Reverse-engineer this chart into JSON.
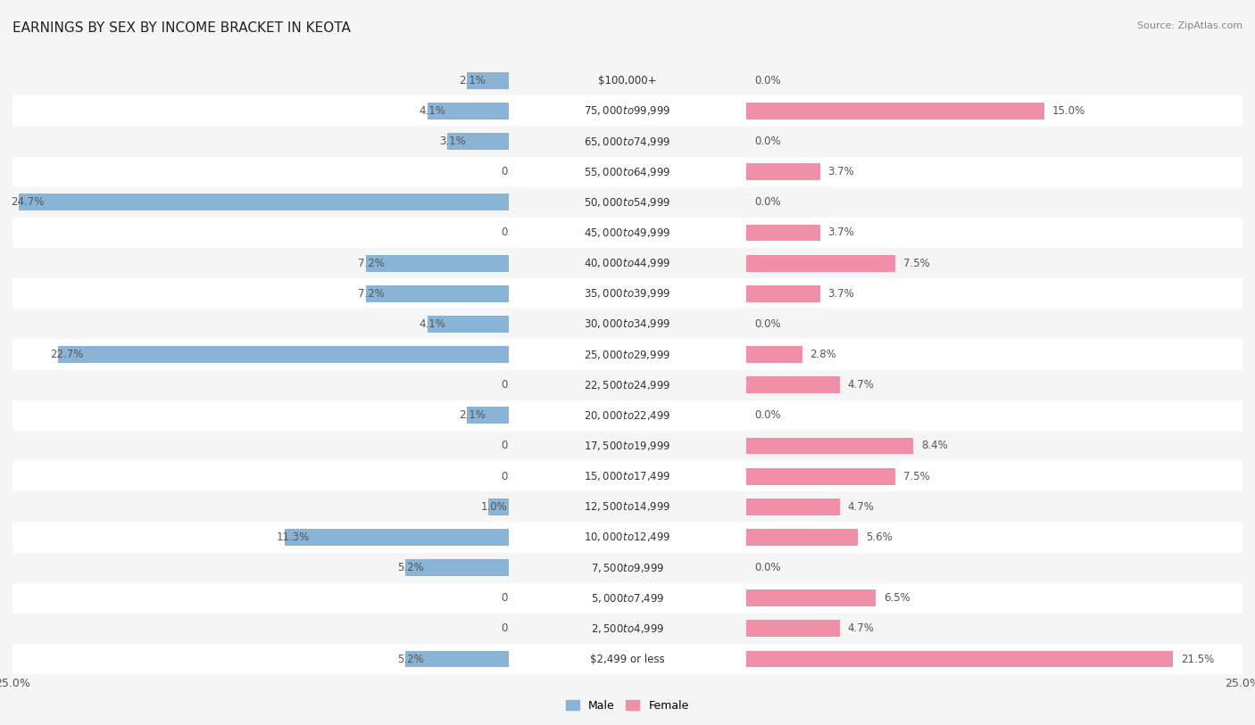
{
  "title": "EARNINGS BY SEX BY INCOME BRACKET IN KEOTA",
  "source": "Source: ZipAtlas.com",
  "categories": [
    "$2,499 or less",
    "$2,500 to $4,999",
    "$5,000 to $7,499",
    "$7,500 to $9,999",
    "$10,000 to $12,499",
    "$12,500 to $14,999",
    "$15,000 to $17,499",
    "$17,500 to $19,999",
    "$20,000 to $22,499",
    "$22,500 to $24,999",
    "$25,000 to $29,999",
    "$30,000 to $34,999",
    "$35,000 to $39,999",
    "$40,000 to $44,999",
    "$45,000 to $49,999",
    "$50,000 to $54,999",
    "$55,000 to $64,999",
    "$65,000 to $74,999",
    "$75,000 to $99,999",
    "$100,000+"
  ],
  "male": [
    5.2,
    0.0,
    0.0,
    5.2,
    11.3,
    1.0,
    0.0,
    0.0,
    2.1,
    0.0,
    22.7,
    4.1,
    7.2,
    7.2,
    0.0,
    24.7,
    0.0,
    3.1,
    4.1,
    2.1
  ],
  "female": [
    21.5,
    4.7,
    6.5,
    0.0,
    5.6,
    4.7,
    7.5,
    8.4,
    0.0,
    4.7,
    2.8,
    0.0,
    3.7,
    7.5,
    3.7,
    0.0,
    3.7,
    0.0,
    15.0,
    0.0
  ],
  "male_color": "#8ab4d5",
  "female_color": "#f090a8",
  "male_label": "Male",
  "female_label": "Female",
  "xlim": 25.0,
  "row_color_even": "#e8e8e8",
  "row_color_odd": "#f5f5f5",
  "background_color": "#f5f5f5",
  "title_fontsize": 11,
  "label_fontsize": 8.5,
  "value_fontsize": 8.5,
  "tick_fontsize": 9
}
